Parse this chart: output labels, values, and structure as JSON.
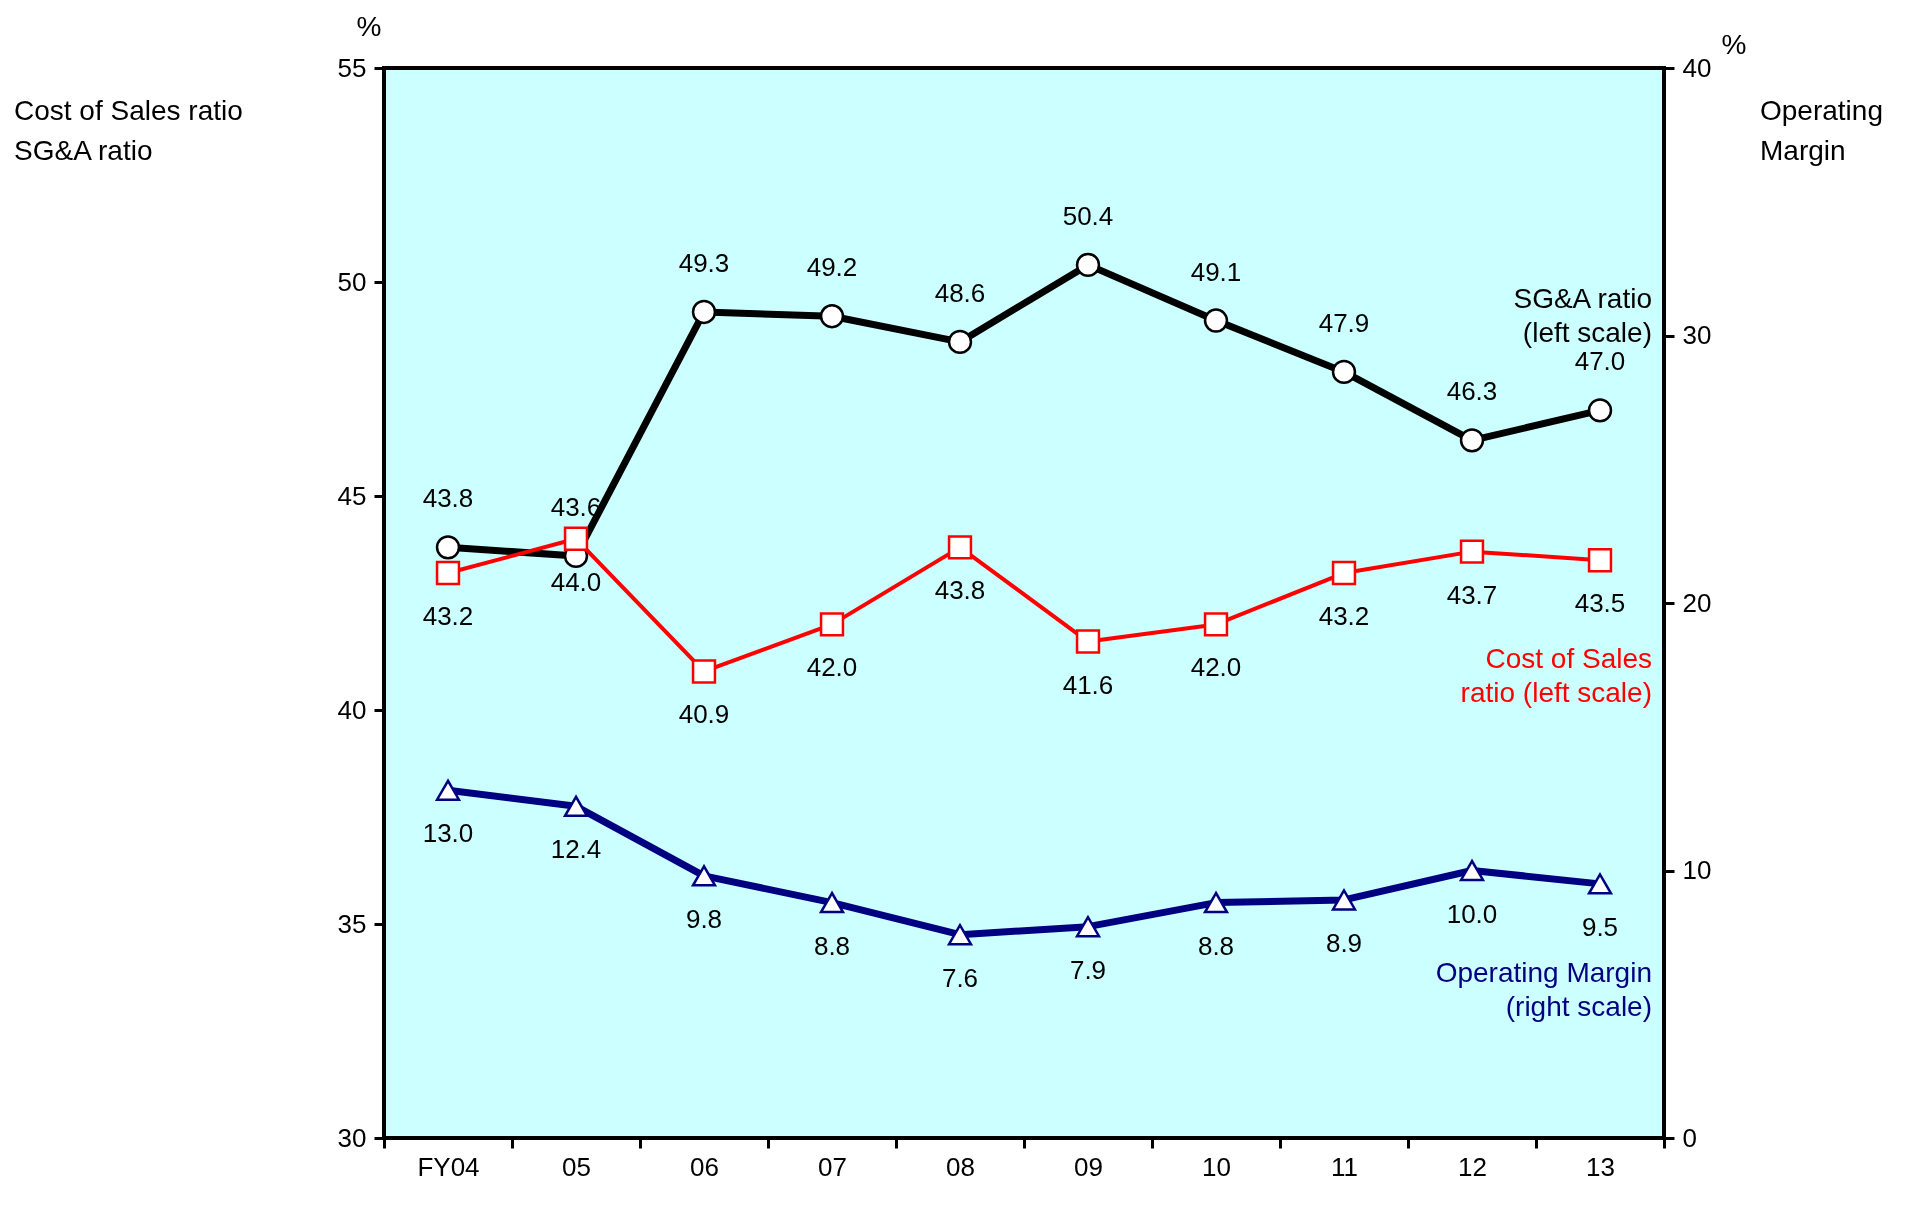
{
  "chart_data": {
    "type": "line",
    "categories": [
      "FY04",
      "05",
      "06",
      "07",
      "08",
      "09",
      "10",
      "11",
      "12",
      "13"
    ],
    "ylabel": "Cost of Sales ratio\nSG&A ratio",
    "y2label": "Operating Margin",
    "ylim": [
      30,
      55
    ],
    "yticks": [
      30,
      35,
      40,
      45,
      50,
      55
    ],
    "y2lim": [
      0,
      40
    ],
    "y2ticks": [
      0,
      10,
      20,
      30,
      40
    ],
    "annotations": [
      "%",
      "%"
    ],
    "series": [
      {
        "name": "SG&A ratio\n(left scale)",
        "color": "#000000",
        "marker": "circle",
        "values": [
          43.8,
          43.6,
          49.3,
          49.2,
          48.6,
          50.4,
          49.1,
          47.9,
          46.3,
          47.0
        ],
        "value_labels": [
          "43.8",
          "43.6",
          "49.3",
          "49.2",
          "48.6",
          "50.4",
          "49.1",
          "47.9",
          "46.3",
          "47.0"
        ]
      },
      {
        "name": "Cost of Sales\nratio (left scale)",
        "color": "#ff0000",
        "marker": "square",
        "values": [
          43.2,
          44.0,
          40.9,
          42.0,
          43.8,
          41.6,
          42.0,
          43.2,
          43.7,
          43.5
        ],
        "value_labels": [
          "43.2",
          "44.0",
          "40.9",
          "42.0",
          "43.8",
          "41.6",
          "42.0",
          "43.2",
          "43.7",
          "43.5"
        ]
      },
      {
        "name": "Operating Margin\n(right scale)",
        "color": "#000080",
        "marker": "triangle",
        "axis": "y2",
        "values": [
          13.0,
          12.4,
          9.8,
          8.8,
          7.6,
          7.9,
          8.8,
          8.9,
          10.0,
          9.5
        ],
        "value_labels": [
          "13.0",
          "12.4",
          "9.8",
          "8.8",
          "7.6",
          "7.9",
          "8.8",
          "8.9",
          "10.0",
          "9.5"
        ]
      }
    ],
    "grid": false
  }
}
